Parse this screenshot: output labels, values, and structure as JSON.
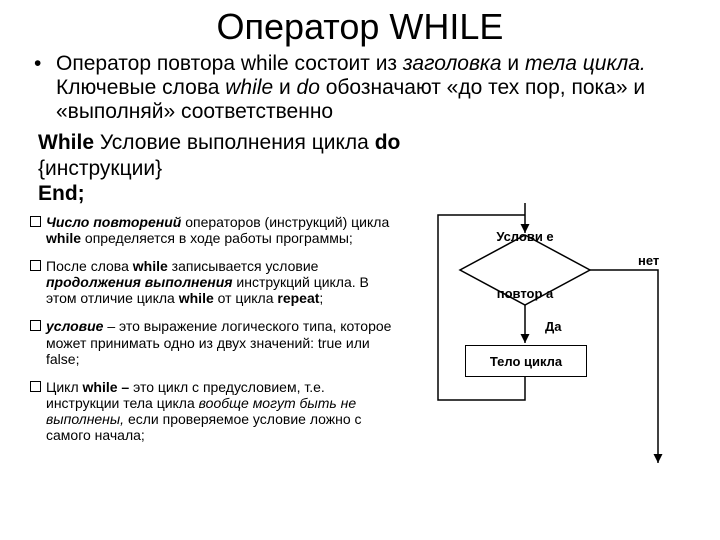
{
  "title": "Оператор WHILE",
  "intro_html": "Оператор повтора while состоит из <span class='i'>заголовка</span> и <span class='i'>тела цикла.</span> Ключевые слова <span class='i'>while</span> и <span class='i'>do</span> обозначают «до тех пор, пока» и «выполняй» соответственно",
  "syntax": {
    "line1_prefix": "While",
    "line1_mid": " Условие выполнения цикла ",
    "line1_suffix": "do",
    "line2": "{инструкции}",
    "line3": "End;"
  },
  "notes": [
    "<span class='bi'>Число повторений</span> операторов (инструкций) цикла <span class='b'>while</span> определяется в ходе работы программы;",
    "После слова <span class='b'>while</span> записывается условие <span class='bi'>продолжения выполнения</span> инструкций цикла. В этом отличие цикла <span class='b'>while</span> от цикла <span class='b'>repeat</span>;",
    "<span class='bi'> условие</span> – это выражение логического типа, которое может принимать одно из двух значений: true или false;",
    "Цикл <span class='b'>while –</span> это цикл с предусловием, т.е. инструкции тела цикла <span class='i'>вообще могут быть не выполнены,</span> если проверяемое условие ложно с самого начала;"
  ],
  "diagram": {
    "diamond_top": "Услови\nе",
    "diamond_bottom": "повтор\nа",
    "yes": "Да",
    "no": "нет",
    "body": "Тело цикла",
    "colors": {
      "bg": "#ffffff",
      "line": "#000000",
      "diamond_fill": "#ffffff"
    }
  }
}
